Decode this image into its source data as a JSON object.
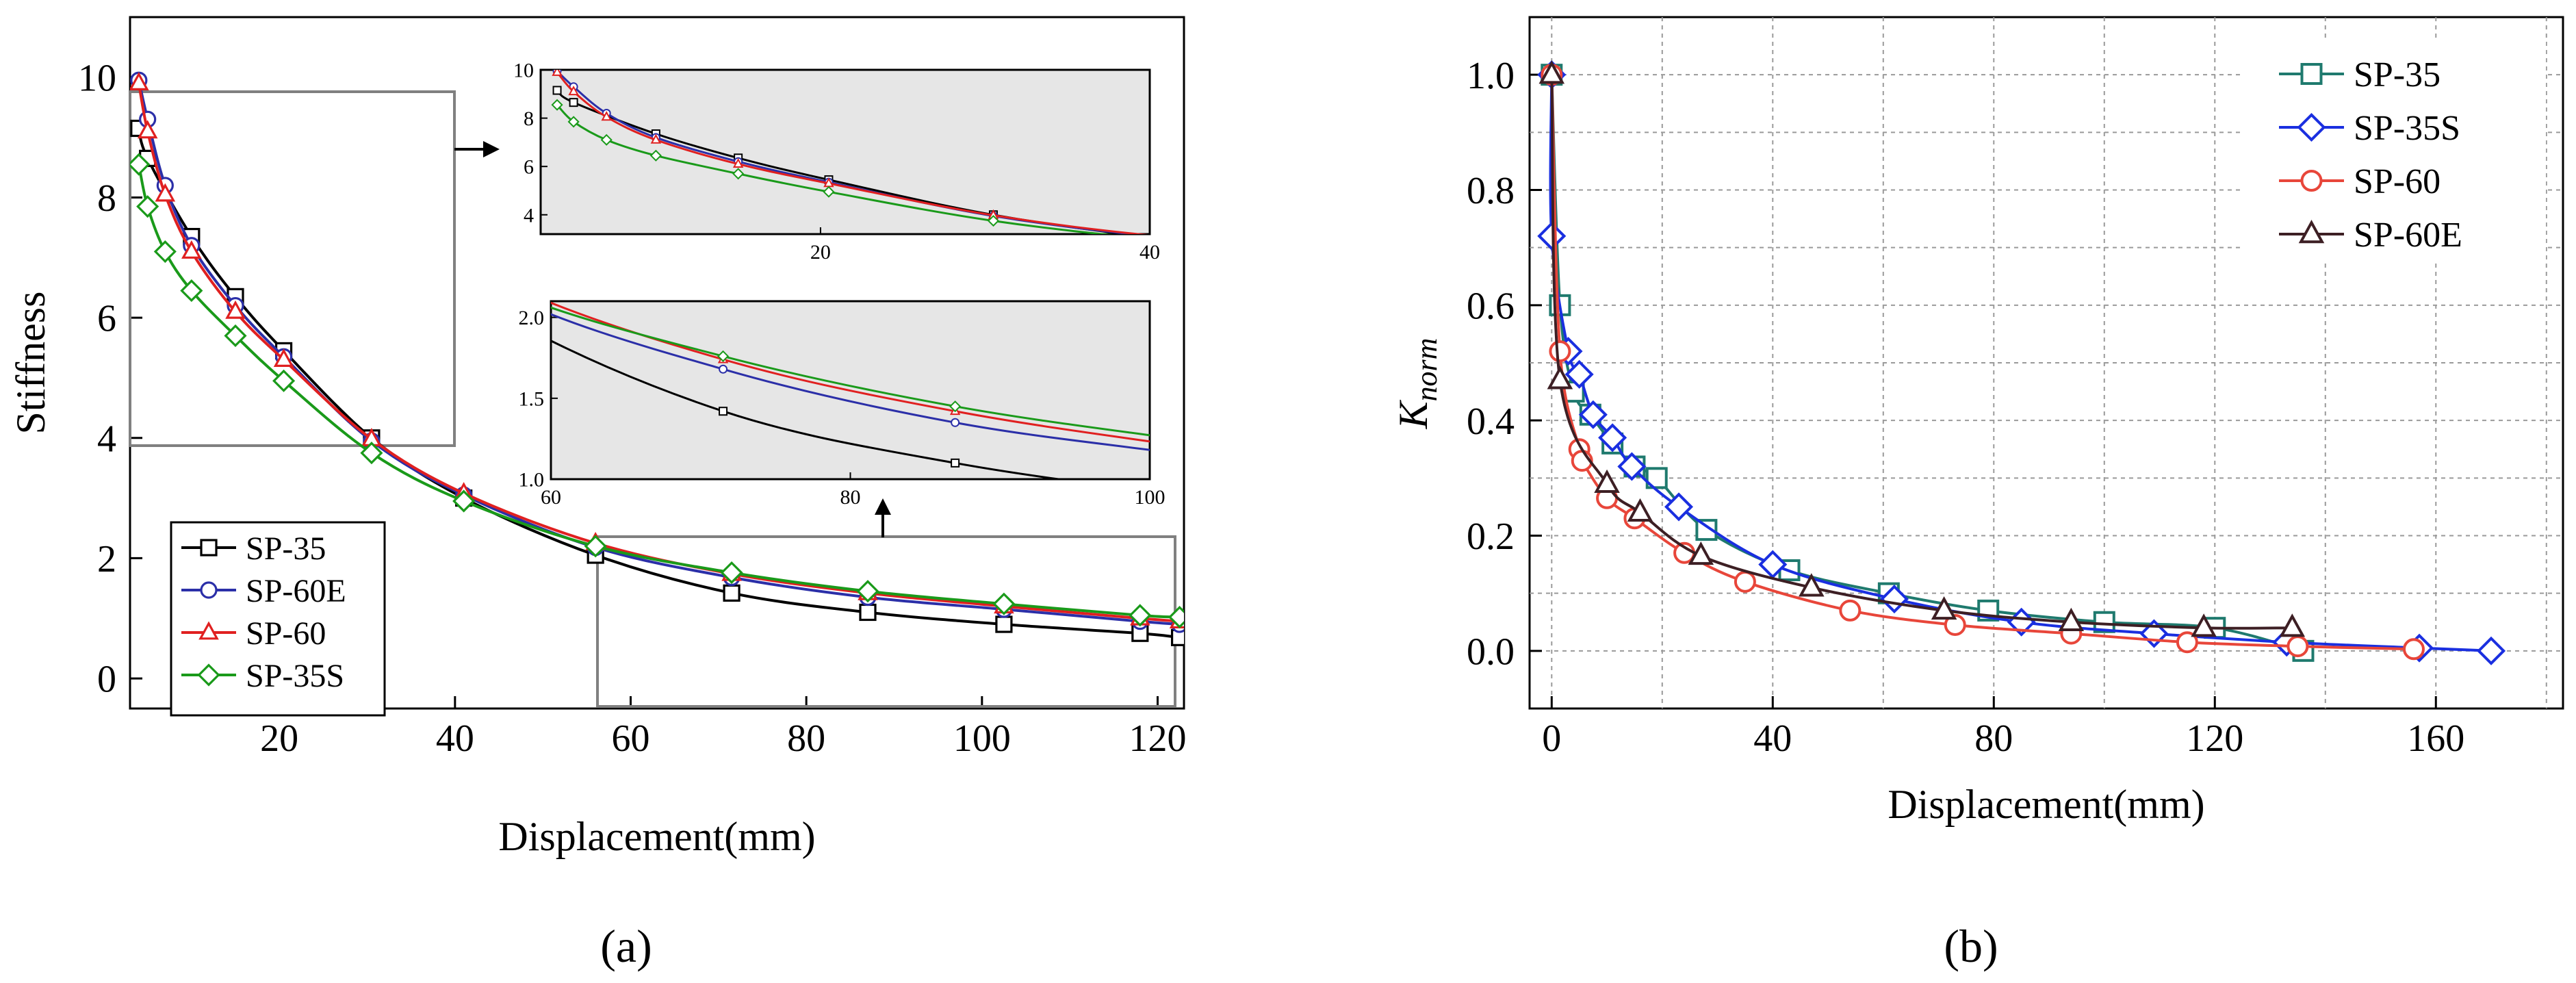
{
  "chart_data": [
    {
      "id": "a",
      "type": "line",
      "panel_label": "(a)",
      "xlabel": "Displacement(mm)",
      "ylabel": "Stiffness",
      "xlim": [
        3,
        123
      ],
      "ylim": [
        -0.5,
        11
      ],
      "xticks": [
        20,
        40,
        60,
        80,
        100,
        120
      ],
      "yticks": [
        0,
        2,
        4,
        6,
        8,
        10
      ],
      "legend_position": "bottom-left",
      "series": [
        {
          "name": "SP-35",
          "color": "#000000",
          "marker": "square",
          "x": [
            4,
            5,
            10,
            15,
            20.5,
            30.5,
            41,
            56,
            71.5,
            87,
            102.5,
            118,
            122.5
          ],
          "y": [
            9.15,
            8.65,
            7.35,
            6.35,
            5.45,
            4.0,
            3.0,
            2.05,
            1.42,
            1.1,
            0.9,
            0.75,
            0.68
          ]
        },
        {
          "name": "SP-60E",
          "color": "#2b2fa8",
          "marker": "circle",
          "x": [
            4,
            5,
            7,
            10,
            15,
            20.5,
            30.5,
            41,
            56,
            71.5,
            87,
            102.5,
            118,
            122.5
          ],
          "y": [
            9.95,
            9.3,
            8.2,
            7.2,
            6.2,
            5.35,
            3.95,
            3.05,
            2.18,
            1.68,
            1.35,
            1.15,
            0.95,
            0.9
          ]
        },
        {
          "name": "SP-60",
          "color": "#e02020",
          "marker": "triangle",
          "x": [
            4,
            5,
            7,
            10,
            15,
            20.5,
            30.5,
            41,
            56,
            71.5,
            87,
            102.5,
            118,
            122.5
          ],
          "y": [
            9.9,
            9.1,
            8.05,
            7.1,
            6.1,
            5.3,
            3.98,
            3.08,
            2.25,
            1.74,
            1.42,
            1.2,
            1.0,
            0.95
          ]
        },
        {
          "name": "SP-35S",
          "color": "#1a9a1a",
          "marker": "diamond",
          "x": [
            4,
            5,
            7,
            10,
            15,
            20.5,
            30.5,
            41,
            56,
            71.5,
            87,
            102.5,
            118,
            122.5
          ],
          "y": [
            8.55,
            7.85,
            7.1,
            6.45,
            5.7,
            4.95,
            3.75,
            2.95,
            2.2,
            1.76,
            1.45,
            1.24,
            1.05,
            1.02
          ]
        }
      ],
      "insets": [
        {
          "id": "upper",
          "xlim": [
            3,
            40
          ],
          "ylim": [
            3.2,
            10
          ],
          "xticks": [
            20,
            40
          ],
          "yticks": [
            4,
            6,
            8,
            10
          ],
          "background": "#e6e6e6"
        },
        {
          "id": "lower",
          "xlim": [
            60,
            100
          ],
          "ylim": [
            1.0,
            2.1
          ],
          "xticks": [
            60,
            80,
            100
          ],
          "yticks": [
            1.0,
            1.5,
            2.0
          ],
          "background": "#e6e6e6"
        }
      ]
    },
    {
      "id": "b",
      "type": "line",
      "panel_label": "(b)",
      "xlabel": "Displacement(mm)",
      "ylabel": "K",
      "ylabel_subscript": "norm",
      "xlim": [
        -4,
        183
      ],
      "ylim": [
        -0.1,
        1.1
      ],
      "xticks": [
        0,
        40,
        80,
        120,
        160
      ],
      "yticks": [
        0.0,
        0.2,
        0.4,
        0.6,
        0.8,
        1.0
      ],
      "legend_position": "top-right",
      "series": [
        {
          "name": "SP-35",
          "color": "#1f7a6e",
          "marker": "square",
          "x": [
            0,
            1.5,
            4,
            7,
            11,
            15,
            19,
            28,
            43,
            61,
            79,
            100,
            120,
            136
          ],
          "y": [
            1.0,
            0.6,
            0.45,
            0.41,
            0.36,
            0.32,
            0.3,
            0.21,
            0.14,
            0.1,
            0.07,
            0.05,
            0.04,
            0.0
          ]
        },
        {
          "name": "SP-35S",
          "color": "#1a2fe0",
          "marker": "diamond",
          "x": [
            0,
            0,
            3,
            5,
            7.5,
            11,
            14.5,
            23,
            40,
            62,
            85,
            109,
            133,
            157,
            170
          ],
          "y": [
            1.0,
            0.72,
            0.52,
            0.48,
            0.41,
            0.37,
            0.32,
            0.25,
            0.15,
            0.09,
            0.05,
            0.03,
            0.015,
            0.005,
            0.0
          ]
        },
        {
          "name": "SP-60",
          "color": "#e8463a",
          "marker": "circle",
          "x": [
            0,
            1.5,
            5,
            5.5,
            10,
            15,
            24,
            35,
            54,
            73,
            94,
            115,
            135,
            156
          ],
          "y": [
            1.0,
            0.52,
            0.35,
            0.33,
            0.265,
            0.23,
            0.17,
            0.12,
            0.07,
            0.045,
            0.03,
            0.015,
            0.008,
            0.003
          ]
        },
        {
          "name": "SP-60E",
          "color": "#3d1f24",
          "marker": "triangle",
          "x": [
            0,
            1.5,
            10,
            16,
            27,
            47,
            71,
            94,
            118,
            134
          ],
          "y": [
            1.0,
            0.47,
            0.29,
            0.24,
            0.165,
            0.11,
            0.07,
            0.05,
            0.04,
            0.04
          ]
        }
      ]
    }
  ]
}
